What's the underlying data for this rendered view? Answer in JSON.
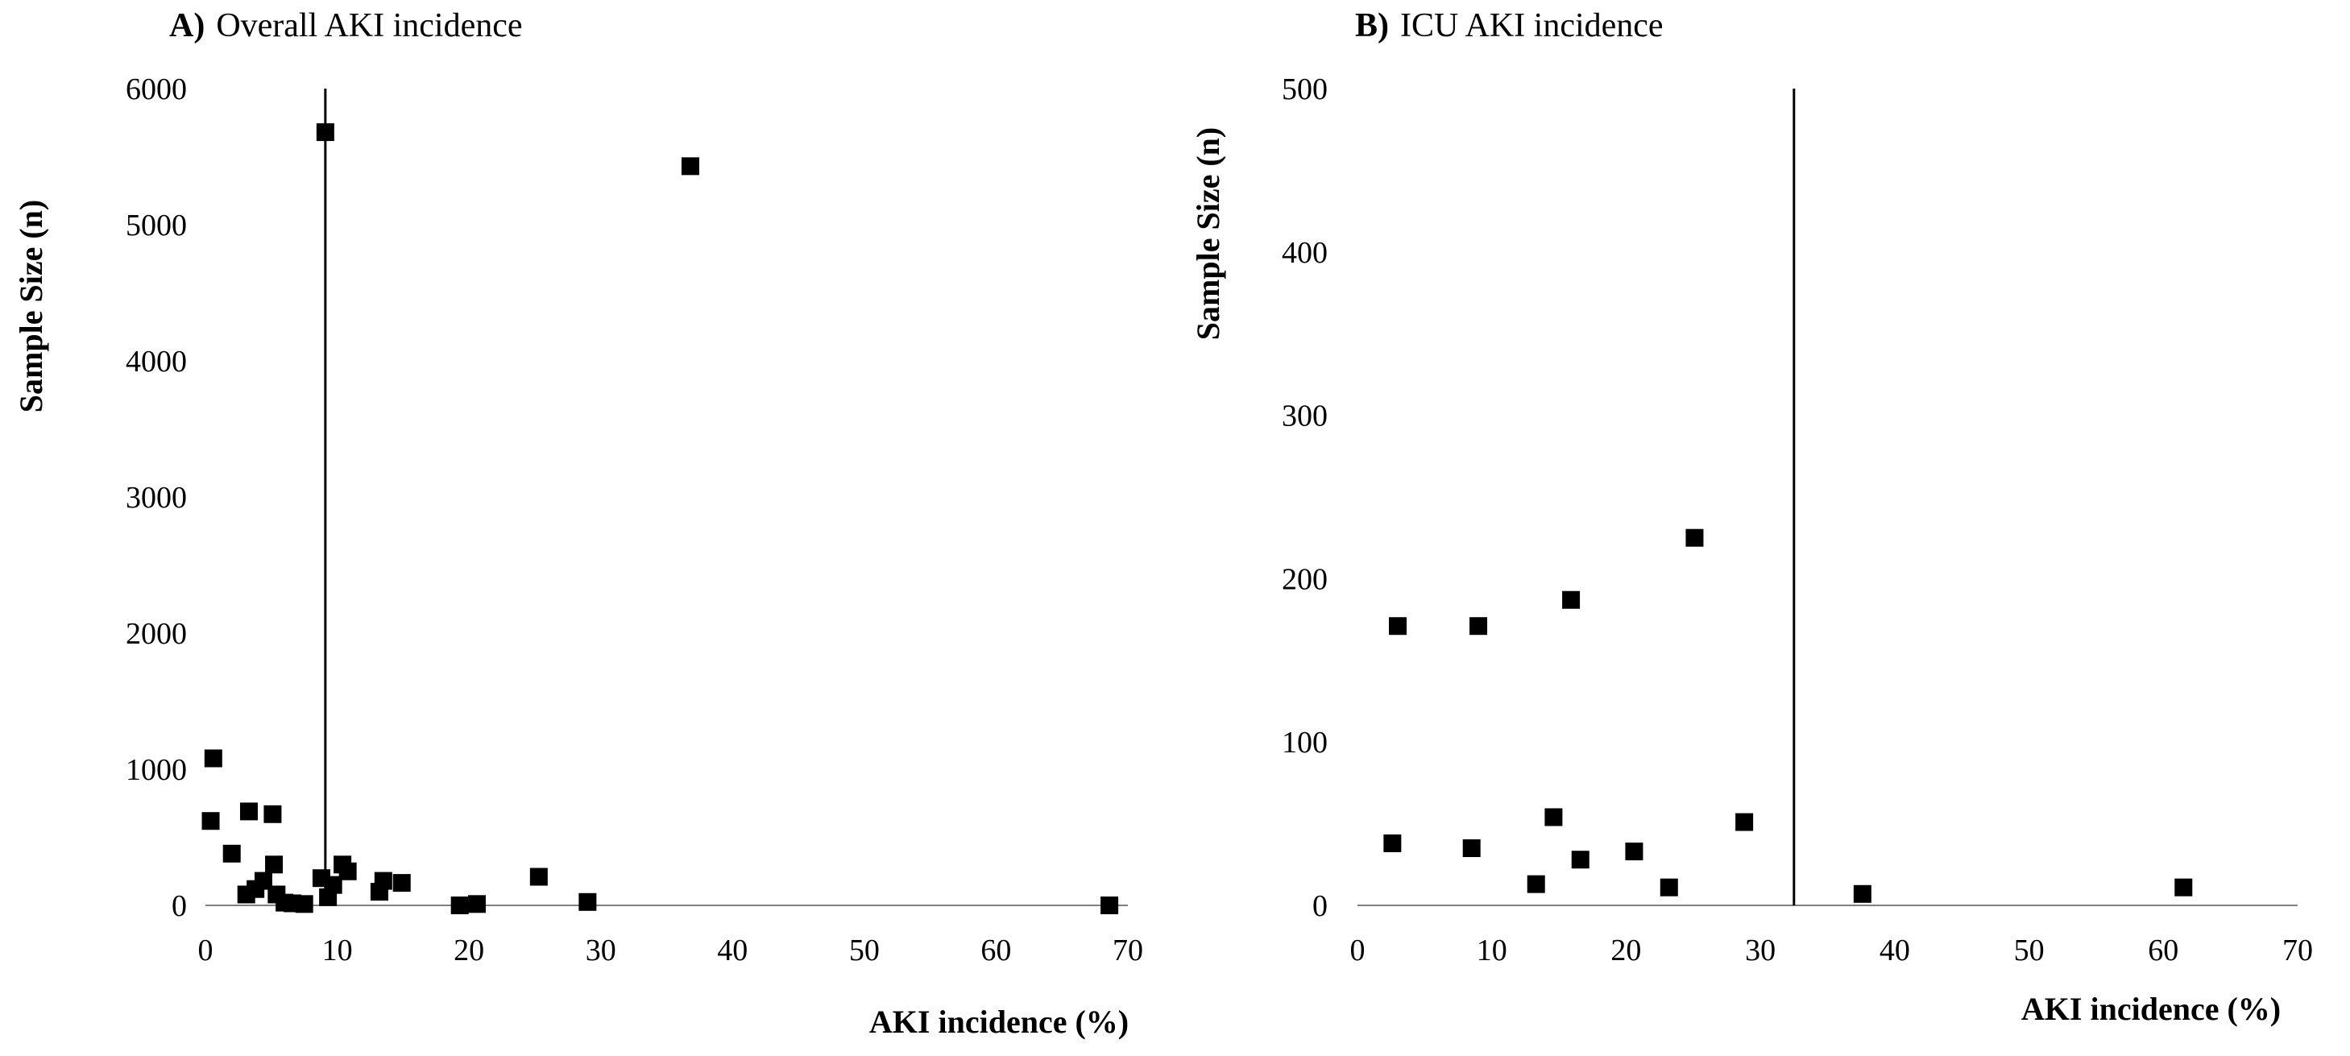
{
  "chart_data": [
    {
      "type": "scatter",
      "title_letter": "A)",
      "title_text": "Overall AKI incidence",
      "xlabel": "AKI incidence (%)",
      "ylabel": "Sample Size (n)",
      "xlim": [
        0,
        70
      ],
      "ylim": [
        0,
        6000
      ],
      "xticks": [
        0,
        10,
        20,
        30,
        40,
        50,
        60,
        70
      ],
      "yticks": [
        0,
        1000,
        2000,
        3000,
        4000,
        5000,
        6000
      ],
      "reference_line_x": 9.1,
      "grid": false,
      "marker": "square",
      "color": "#000000",
      "points": [
        {
          "x": 0.4,
          "y": 620
        },
        {
          "x": 0.6,
          "y": 1080
        },
        {
          "x": 2.0,
          "y": 380
        },
        {
          "x": 3.1,
          "y": 80
        },
        {
          "x": 3.3,
          "y": 690
        },
        {
          "x": 3.8,
          "y": 120
        },
        {
          "x": 4.4,
          "y": 180
        },
        {
          "x": 5.1,
          "y": 670
        },
        {
          "x": 5.2,
          "y": 300
        },
        {
          "x": 5.4,
          "y": 80
        },
        {
          "x": 6.0,
          "y": 20
        },
        {
          "x": 6.6,
          "y": 15
        },
        {
          "x": 7.5,
          "y": 10
        },
        {
          "x": 8.8,
          "y": 200
        },
        {
          "x": 9.1,
          "y": 5680
        },
        {
          "x": 9.3,
          "y": 60
        },
        {
          "x": 9.7,
          "y": 150
        },
        {
          "x": 10.4,
          "y": 300
        },
        {
          "x": 10.8,
          "y": 250
        },
        {
          "x": 13.2,
          "y": 100
        },
        {
          "x": 13.5,
          "y": 180
        },
        {
          "x": 14.9,
          "y": 165
        },
        {
          "x": 19.3,
          "y": 0
        },
        {
          "x": 20.6,
          "y": 10
        },
        {
          "x": 25.3,
          "y": 210
        },
        {
          "x": 29.0,
          "y": 25
        },
        {
          "x": 36.8,
          "y": 5430
        },
        {
          "x": 68.6,
          "y": 0
        }
      ]
    },
    {
      "type": "scatter",
      "title_letter": "B)",
      "title_text": "ICU AKI incidence",
      "xlabel": "AKI incidence (%)",
      "ylabel": "Sample Size (n)",
      "xlim": [
        0,
        70
      ],
      "ylim": [
        0,
        500
      ],
      "xticks": [
        0,
        10,
        20,
        30,
        40,
        50,
        60,
        70
      ],
      "yticks": [
        0,
        100,
        200,
        300,
        400,
        500
      ],
      "reference_line_x": 32.5,
      "grid": false,
      "marker": "square",
      "color": "#000000",
      "points": [
        {
          "x": 2.6,
          "y": 38
        },
        {
          "x": 3.0,
          "y": 171
        },
        {
          "x": 8.5,
          "y": 35
        },
        {
          "x": 9.0,
          "y": 171
        },
        {
          "x": 13.3,
          "y": 13
        },
        {
          "x": 14.6,
          "y": 54
        },
        {
          "x": 15.9,
          "y": 187
        },
        {
          "x": 16.6,
          "y": 28
        },
        {
          "x": 20.6,
          "y": 33
        },
        {
          "x": 23.2,
          "y": 11
        },
        {
          "x": 25.1,
          "y": 225
        },
        {
          "x": 28.8,
          "y": 51
        },
        {
          "x": 37.6,
          "y": 7
        },
        {
          "x": 61.5,
          "y": 11
        }
      ]
    }
  ]
}
